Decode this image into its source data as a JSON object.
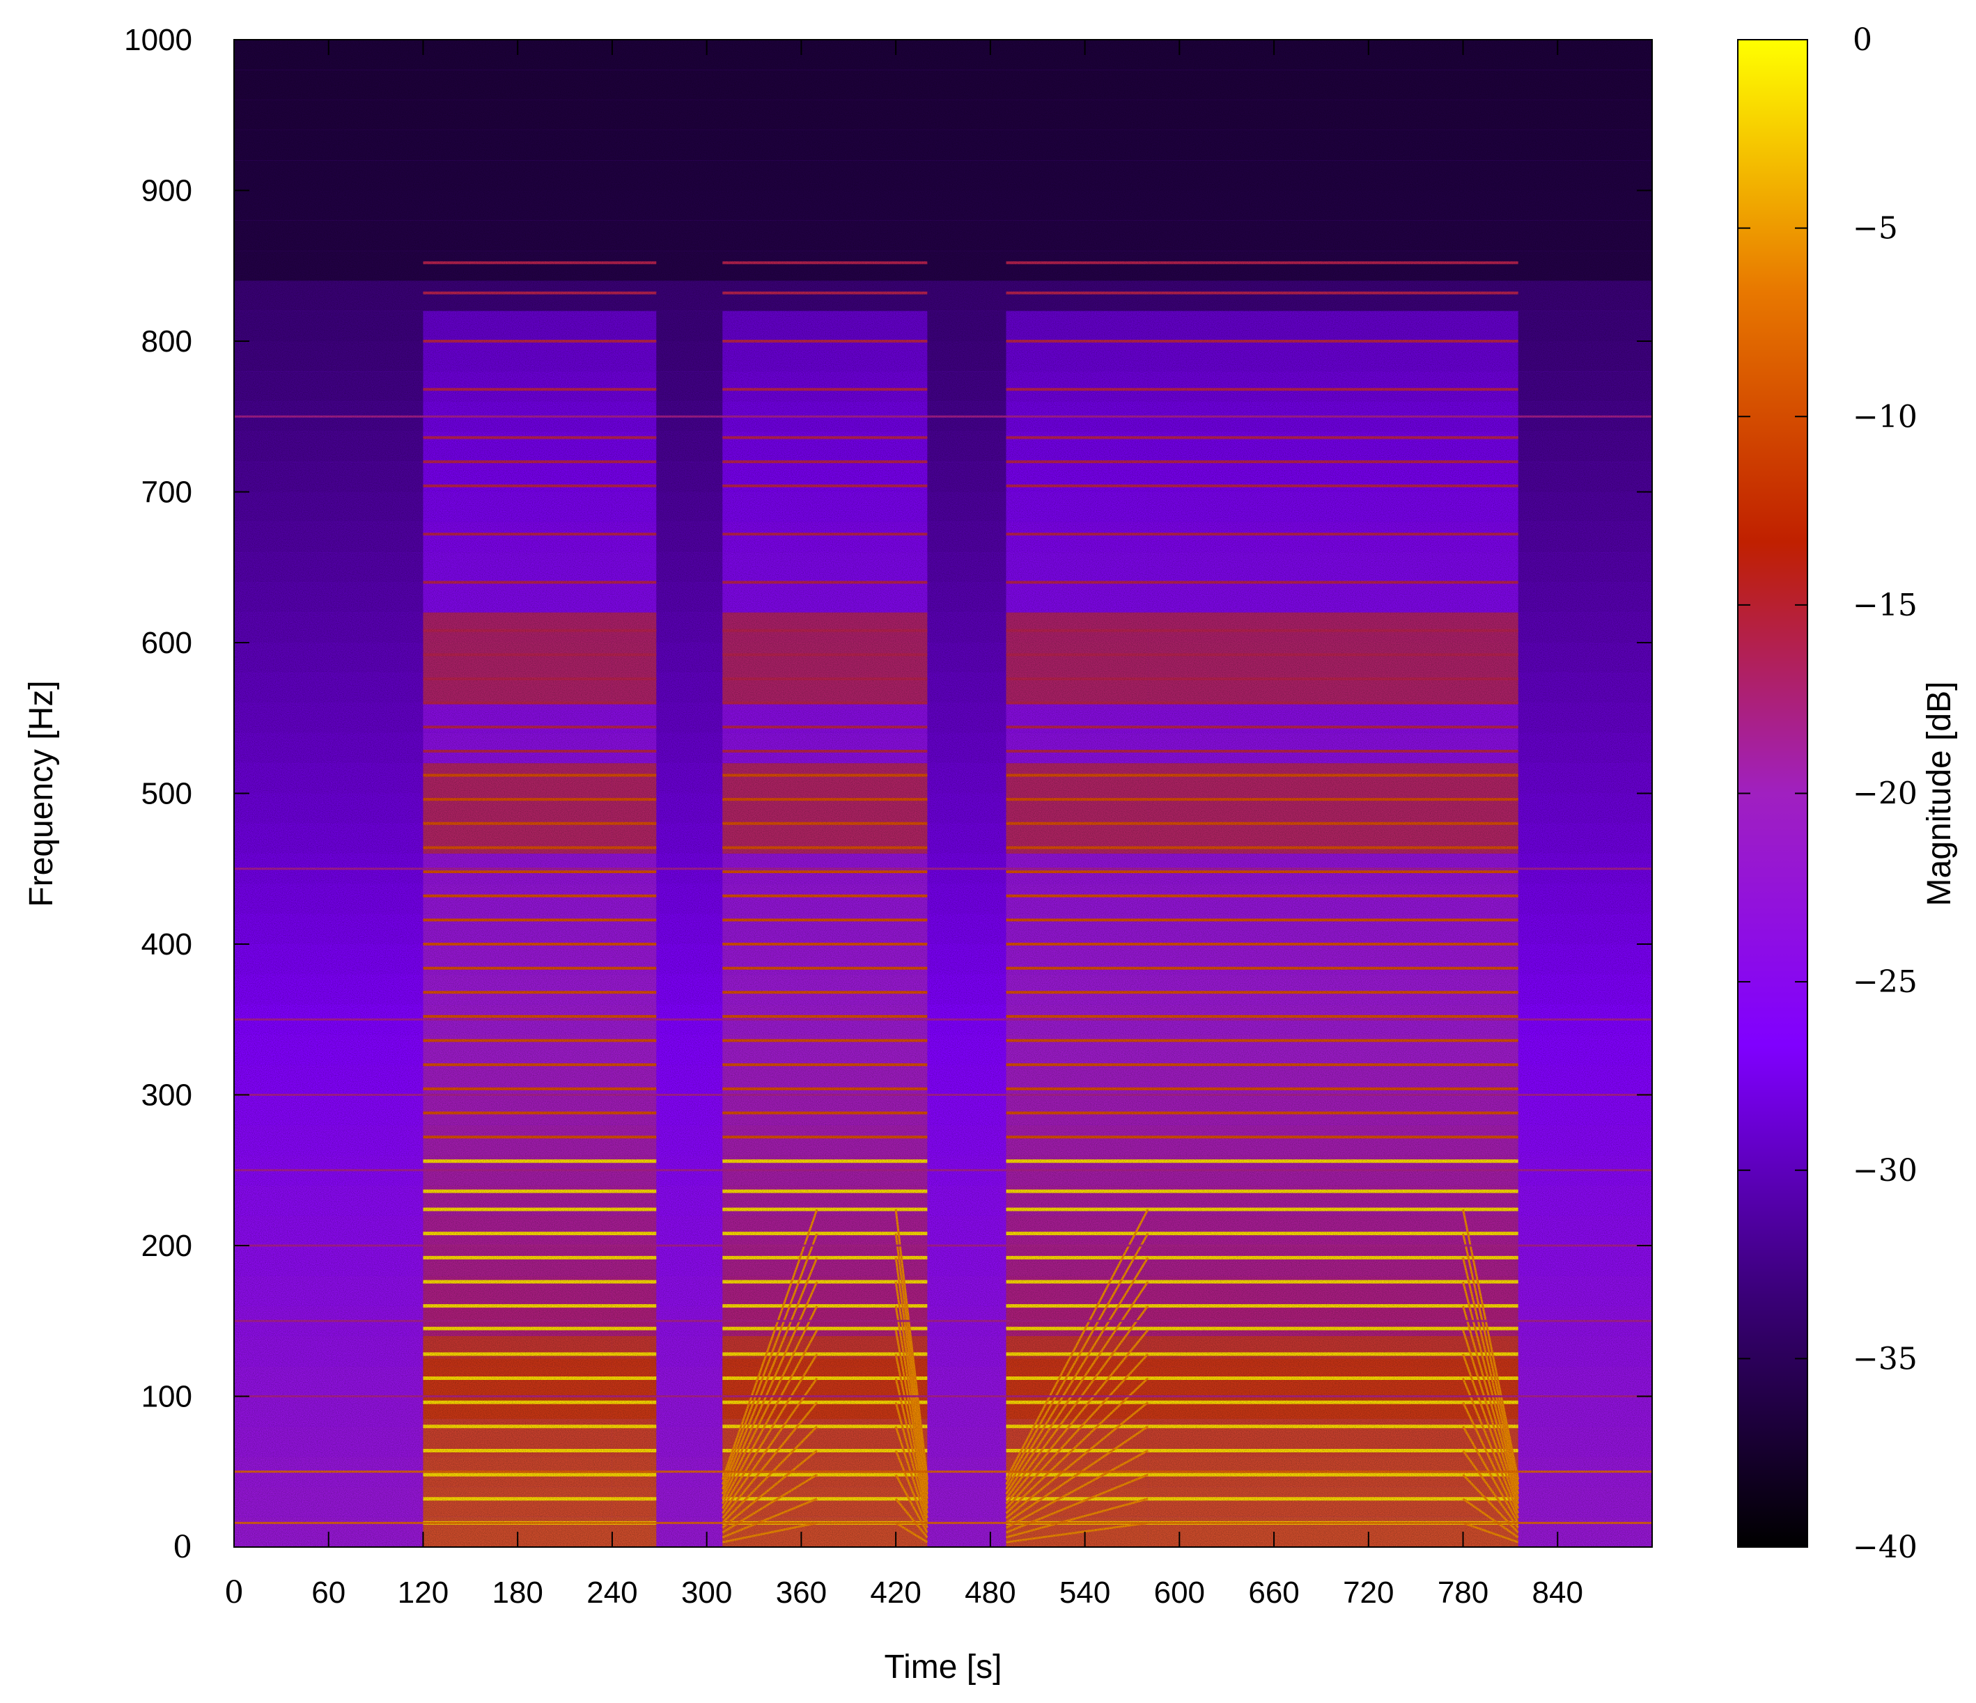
{
  "chart_data": {
    "type": "heatmap",
    "title": "",
    "xlabel": "Time [s]",
    "ylabel": "Frequency [Hz]",
    "colorbar_label": "Magnitude [dB]",
    "xlim": [
      0,
      900
    ],
    "ylim": [
      0,
      1000
    ],
    "clim": [
      -40,
      0
    ],
    "colormap": "gnuplot",
    "colormap_stops": [
      "#000000",
      "#3a0078",
      "#8000ff",
      "#a020c0",
      "#c02000",
      "#e87800",
      "#ffff00"
    ],
    "x_ticks": [
      0,
      60,
      120,
      180,
      240,
      300,
      360,
      420,
      480,
      540,
      600,
      660,
      720,
      780,
      840
    ],
    "x_tick_labels": [
      "0",
      "60",
      "120",
      "180",
      "240",
      "300",
      "360",
      "420",
      "480",
      "540",
      "600",
      "660",
      "720",
      "780",
      "840"
    ],
    "y_ticks": [
      0,
      100,
      200,
      300,
      400,
      500,
      600,
      700,
      800,
      900,
      1000
    ],
    "y_tick_labels": [
      "0",
      "100",
      "200",
      "300",
      "400",
      "500",
      "600",
      "700",
      "800",
      "900",
      "1000"
    ],
    "c_ticks": [
      0,
      -5,
      -10,
      -15,
      -20,
      -25,
      -30,
      -35,
      -40
    ],
    "c_tick_labels": [
      "0",
      "−5",
      "−10",
      "−15",
      "−20",
      "−25",
      "−30",
      "−35",
      "−40"
    ],
    "grid": false,
    "background_level_db": -30,
    "active_segments_s": [
      [
        120,
        240
      ],
      [
        240,
        268
      ],
      [
        310,
        440
      ],
      [
        490,
        580
      ],
      [
        580,
        815
      ]
    ],
    "ramp_segments_s": [
      [
        310,
        370
      ],
      [
        490,
        580
      ],
      [
        420,
        440
      ],
      [
        780,
        815
      ]
    ],
    "steady_harmonic_freqs_hz": [
      16,
      32,
      48,
      64,
      80,
      96,
      112,
      128,
      145,
      160,
      176,
      192,
      208,
      224,
      236,
      256,
      272,
      288,
      304,
      320,
      336,
      352,
      368,
      384,
      400,
      416,
      432,
      448,
      464,
      480,
      496,
      512,
      528,
      544,
      560,
      576,
      592,
      608,
      640,
      672,
      704,
      720,
      736,
      768,
      800,
      832,
      852
    ],
    "constant_lines_hz": [
      16,
      50,
      100,
      150,
      200,
      250,
      300,
      350,
      450,
      750
    ],
    "broadband_hump_hz": [
      [
        85,
        125
      ],
      [
        460,
        520
      ],
      [
        560,
        620
      ]
    ]
  }
}
